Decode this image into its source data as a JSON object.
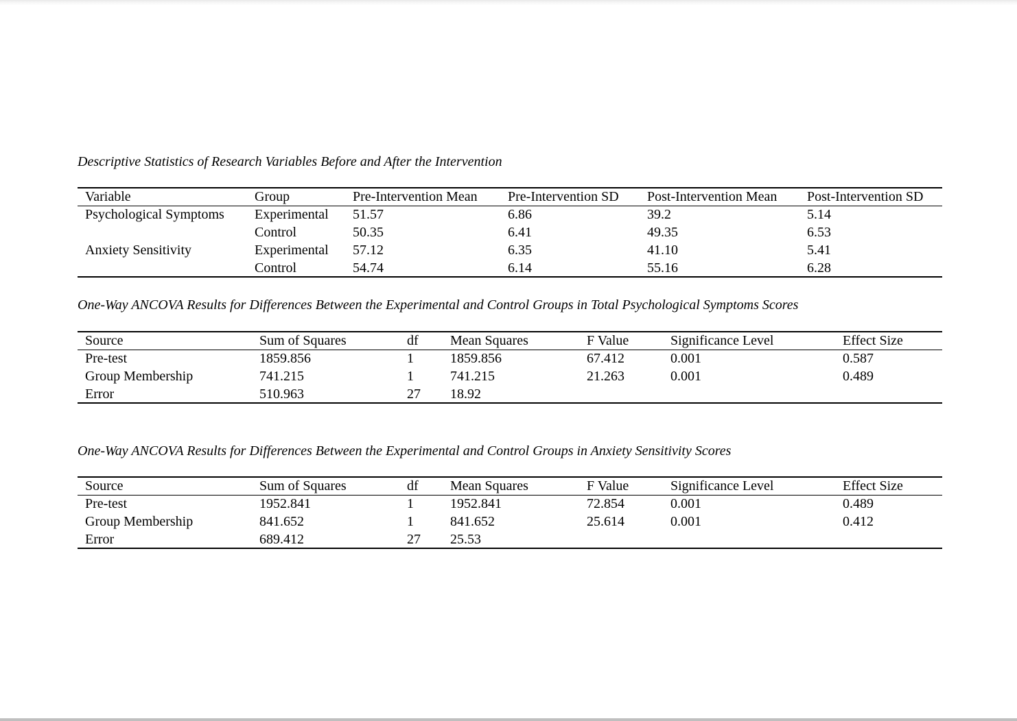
{
  "page": {
    "background_color": "#ffffff",
    "top_edge_color": "#e9e9e9",
    "bottom_edge_color": "#bfbfbf",
    "text_color": "#000000"
  },
  "tables": [
    {
      "title": "Descriptive Statistics of Research Variables Before and After the Intervention",
      "columns": [
        "Variable",
        "Group",
        "Pre-Intervention Mean",
        "Pre-Intervention SD",
        "Post-Intervention Mean",
        "Post-Intervention SD"
      ],
      "rows": [
        [
          "Psychological Symptoms",
          "Experimental",
          "51.57",
          "6.86",
          "39.2",
          "5.14"
        ],
        [
          "",
          "Control",
          "50.35",
          "6.41",
          "49.35",
          "6.53"
        ],
        [
          "Anxiety Sensitivity",
          "Experimental",
          "57.12",
          "6.35",
          "41.10",
          "5.41"
        ],
        [
          "",
          "Control",
          "54.74",
          "6.14",
          "55.16",
          "6.28"
        ]
      ]
    },
    {
      "title": "One-Way ANCOVA Results for Differences Between the Experimental and Control Groups in Total Psychological Symptoms Scores",
      "columns": [
        "Source",
        "Sum of Squares",
        "df",
        "Mean Squares",
        "F Value",
        "Significance Level",
        "Effect Size"
      ],
      "rows": [
        [
          "Pre-test",
          "1859.856",
          "1",
          "1859.856",
          "67.412",
          "0.001",
          "0.587"
        ],
        [
          "Group Membership",
          "741.215",
          "1",
          "741.215",
          "21.263",
          "0.001",
          "0.489"
        ],
        [
          "Error",
          "510.963",
          "27",
          "18.92",
          "",
          "",
          ""
        ]
      ]
    },
    {
      "title": "One-Way ANCOVA Results for Differences Between the Experimental and Control Groups in Anxiety Sensitivity Scores",
      "columns": [
        "Source",
        "Sum of Squares",
        "df",
        "Mean Squares",
        "F Value",
        "Significance Level",
        "Effect Size"
      ],
      "rows": [
        [
          "Pre-test",
          "1952.841",
          "1",
          "1952.841",
          "72.854",
          "0.001",
          "0.489"
        ],
        [
          "Group Membership",
          "841.652",
          "1",
          "841.652",
          "25.614",
          "0.001",
          "0.412"
        ],
        [
          "Error",
          "689.412",
          "27",
          "25.53",
          "",
          "",
          ""
        ]
      ]
    }
  ]
}
